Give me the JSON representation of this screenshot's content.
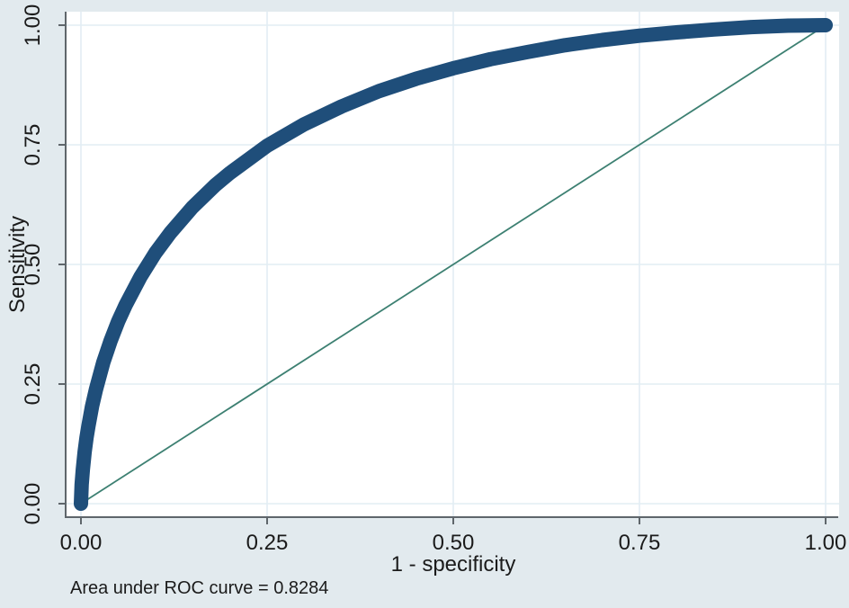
{
  "figure": {
    "background_color": "#e2eaee",
    "plot_background_color": "#ffffff",
    "grid_color": "#e2edf3",
    "axis_color": "#5f666b",
    "text_color": "#1b1b1b"
  },
  "chart_data": {
    "type": "line",
    "title": "",
    "xlabel": "1 - specificity",
    "ylabel": "Sensitivity",
    "caption": "Area under ROC curve = 0.8284",
    "auc": 0.8284,
    "xlim": [
      0,
      1
    ],
    "ylim": [
      0,
      1
    ],
    "grid": true,
    "legend_position": "none",
    "xticks": {
      "values": [
        0,
        0.25,
        0.5,
        0.75,
        1
      ],
      "labels": [
        "0.00",
        "0.25",
        "0.50",
        "0.75",
        "1.00"
      ]
    },
    "yticks": {
      "values": [
        0,
        0.25,
        0.5,
        0.75,
        1
      ],
      "labels": [
        "0.00",
        "0.25",
        "0.50",
        "0.75",
        "1.00"
      ]
    },
    "series": [
      {
        "name": "reference-line",
        "color": "#3d8072",
        "stroke_width": 1.8,
        "points": [
          [
            0,
            0
          ],
          [
            1,
            1
          ]
        ]
      },
      {
        "name": "roc-curve",
        "color": "#1f4e7a",
        "stroke_width": 16,
        "points": [
          [
            0,
            0
          ],
          [
            0.001,
            0.04
          ],
          [
            0.0025,
            0.071
          ],
          [
            0.005,
            0.108
          ],
          [
            0.0075,
            0.138
          ],
          [
            0.01,
            0.162
          ],
          [
            0.015,
            0.204
          ],
          [
            0.02,
            0.238
          ],
          [
            0.03,
            0.295
          ],
          [
            0.04,
            0.341
          ],
          [
            0.05,
            0.381
          ],
          [
            0.06,
            0.415
          ],
          [
            0.08,
            0.474
          ],
          [
            0.1,
            0.524
          ],
          [
            0.12,
            0.566
          ],
          [
            0.15,
            0.62
          ],
          [
            0.18,
            0.665
          ],
          [
            0.2,
            0.691
          ],
          [
            0.25,
            0.748
          ],
          [
            0.3,
            0.793
          ],
          [
            0.35,
            0.83
          ],
          [
            0.4,
            0.862
          ],
          [
            0.45,
            0.888
          ],
          [
            0.5,
            0.91
          ],
          [
            0.55,
            0.929
          ],
          [
            0.6,
            0.944
          ],
          [
            0.65,
            0.958
          ],
          [
            0.7,
            0.969
          ],
          [
            0.75,
            0.978
          ],
          [
            0.8,
            0.985
          ],
          [
            0.85,
            0.991
          ],
          [
            0.9,
            0.996
          ],
          [
            0.95,
            0.999
          ],
          [
            1,
            1
          ]
        ]
      }
    ]
  }
}
